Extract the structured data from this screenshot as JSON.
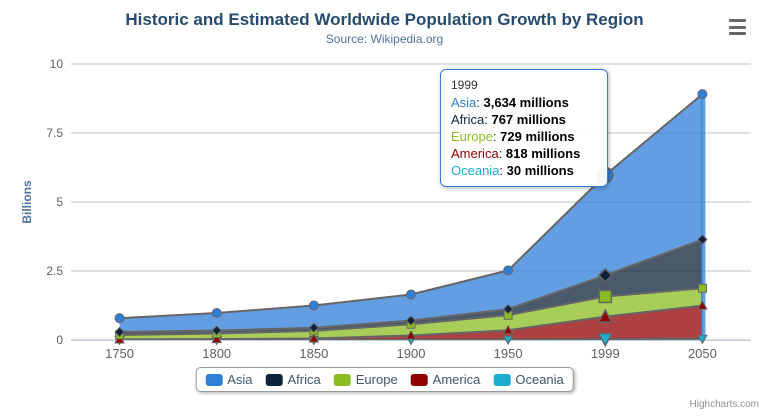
{
  "header": {
    "title": "Historic and Estimated Worldwide Population Growth by Region",
    "subtitle": "Source: Wikipedia.org"
  },
  "credits": {
    "label": "Highcharts.com"
  },
  "menu": {
    "icon": "hamburger-icon"
  },
  "colors": {
    "title": "#274b6d",
    "subtitle": "#4d759e",
    "axis_label": "#606060",
    "axis_title": "#4d759e",
    "grid": "#C0C0C0",
    "axis_line": "#C0D0E0",
    "series_line": "#666666",
    "legend_text": "#3E576F",
    "legend_border": "#999999",
    "tooltip_border": "#2f7ed8",
    "menu_icon": "#666666",
    "credits_text": "#909090"
  },
  "chart_data": {
    "type": "area",
    "stacking": "normal",
    "title": "Historic and Estimated Worldwide Population Growth by Region",
    "subtitle": "Source: Wikipedia.org",
    "categories": [
      "1750",
      "1800",
      "1850",
      "1900",
      "1950",
      "1999",
      "2050"
    ],
    "xlabel": "",
    "ylabel": "Billions",
    "ylim": [
      0,
      10
    ],
    "yticks": [
      0,
      2.5,
      5,
      7.5,
      10
    ],
    "grid": true,
    "legend_position": "bottom",
    "values_unit": "millions",
    "series": [
      {
        "name": "Asia",
        "color": "#2f7ed8",
        "marker": "circle",
        "values": [
          502,
          635,
          809,
          947,
          1402,
          3634,
          5268
        ]
      },
      {
        "name": "Africa",
        "color": "#0d233a",
        "marker": "diamond",
        "values": [
          106,
          107,
          111,
          133,
          221,
          767,
          1766
        ]
      },
      {
        "name": "Europe",
        "color": "#8bbc21",
        "marker": "square",
        "values": [
          163,
          203,
          276,
          408,
          547,
          729,
          628
        ]
      },
      {
        "name": "America",
        "color": "#910000",
        "marker": "triangle",
        "values": [
          18,
          31,
          54,
          156,
          339,
          818,
          1201
        ]
      },
      {
        "name": "Oceania",
        "color": "#1aadce",
        "marker": "triangle-down",
        "values": [
          2,
          2,
          2,
          6,
          13,
          30,
          46
        ]
      }
    ],
    "hover_index": 5,
    "fill_opacity": 0.75
  },
  "tooltip": {
    "header": "1999",
    "rows": [
      {
        "name": "Asia",
        "value": "3,634 millions"
      },
      {
        "name": "Africa",
        "value": "767 millions"
      },
      {
        "name": "Europe",
        "value": "729 millions"
      },
      {
        "name": "America",
        "value": "818 millions"
      },
      {
        "name": "Oceania",
        "value": "30 millions"
      }
    ]
  }
}
